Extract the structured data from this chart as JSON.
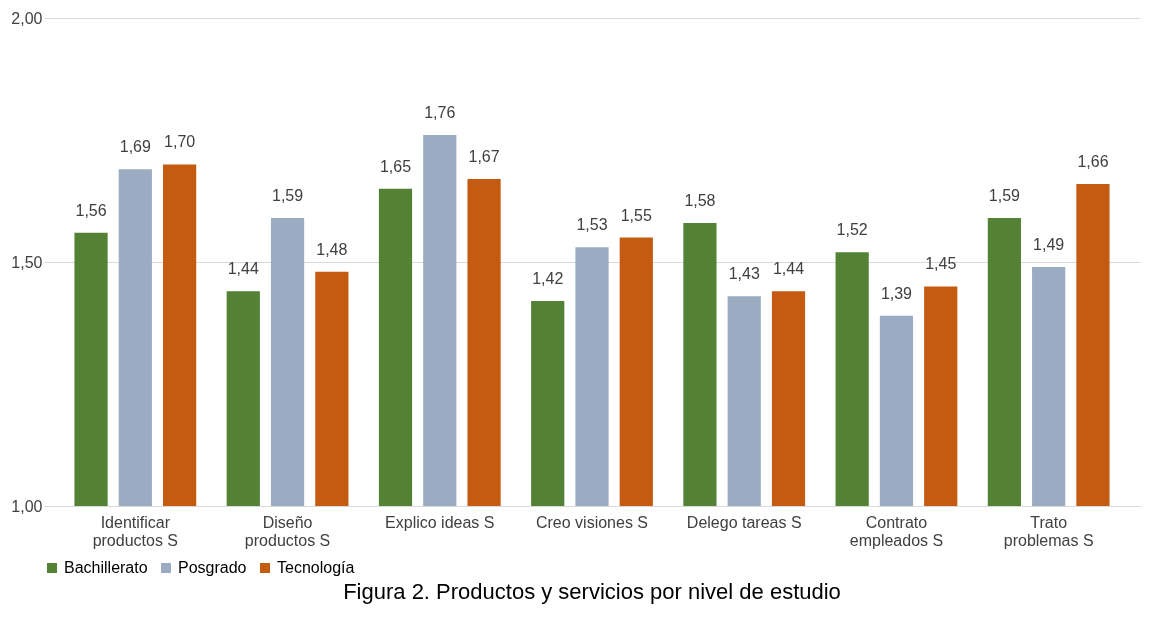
{
  "chart_data": {
    "type": "bar",
    "title": "Figura 2. Productos y servicios por nivel de estudio",
    "categories": [
      "Identificar productos S",
      "Diseño productos S",
      "Explico ideas S",
      "Creo visiones S",
      "Delego tareas S",
      "Contrato empleados S",
      "Trato problemas S"
    ],
    "series": [
      {
        "name": "Bachillerato",
        "color": "#548235",
        "values": [
          1.56,
          1.44,
          1.65,
          1.42,
          1.58,
          1.52,
          1.59
        ],
        "value_labels": [
          "1,56",
          "1,44",
          "1,65",
          "1,42",
          "1,58",
          "1,52",
          "1,59"
        ]
      },
      {
        "name": "Posgrado",
        "color": "#9aabc2",
        "values": [
          1.69,
          1.59,
          1.76,
          1.53,
          1.43,
          1.39,
          1.49
        ],
        "value_labels": [
          "1,69",
          "1,59",
          "1,76",
          "1,53",
          "1,43",
          "1,39",
          "1,49"
        ]
      },
      {
        "name": "Tecnología",
        "color": "#c55a11",
        "values": [
          1.7,
          1.48,
          1.67,
          1.55,
          1.44,
          1.45,
          1.66
        ],
        "value_labels": [
          "1,70",
          "1,48",
          "1,67",
          "1,55",
          "1,44",
          "1,45",
          "1,66"
        ]
      }
    ],
    "ylim": [
      1,
      2
    ],
    "yticks": [
      {
        "value": 1,
        "label": "1,00"
      },
      {
        "value": 1.5,
        "label": "1,50"
      },
      {
        "value": 2,
        "label": "2,00"
      }
    ],
    "grid": "y",
    "legend": "bottom"
  }
}
